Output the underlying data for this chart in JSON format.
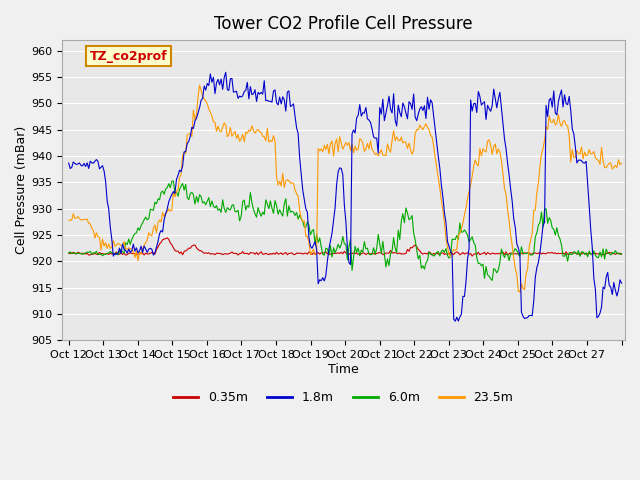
{
  "title": "Tower CO2 Profile Cell Pressure",
  "xlabel": "Time",
  "ylabel": "Cell Pressure (mBar)",
  "ylim": [
    905,
    962
  ],
  "yticks": [
    905,
    910,
    915,
    920,
    925,
    930,
    935,
    940,
    945,
    950,
    955,
    960
  ],
  "n_points": 360,
  "x_start": 11,
  "x_end": 27,
  "xtick_positions": [
    11,
    12,
    13,
    14,
    15,
    16,
    17,
    18,
    19,
    20,
    21,
    22,
    23,
    24,
    25,
    26,
    27
  ],
  "xtick_labels": [
    "Oct 12",
    "Oct 13",
    "Oct 14",
    "Oct 15",
    "Oct 16",
    "Oct 17",
    "Oct 18",
    "Oct 19",
    "Oct 20",
    "Oct 21",
    "Oct 22",
    "Oct 23",
    "Oct 24",
    "Oct 25",
    "Oct 26",
    "Oct 27",
    ""
  ],
  "colors": {
    "red": "#cc0000",
    "blue": "#0000cc",
    "green": "#00aa00",
    "orange": "#ff9900"
  },
  "legend_labels": [
    "0.35m",
    "1.8m",
    "6.0m",
    "23.5m"
  ],
  "legend_colors": [
    "#cc0000",
    "#0000cc",
    "#00aa00",
    "#ff9900"
  ],
  "bg_color": "#e8e8e8",
  "annotation_text": "TZ_co2prof",
  "annotation_bg": "#ffffcc",
  "annotation_border": "#cc8800"
}
